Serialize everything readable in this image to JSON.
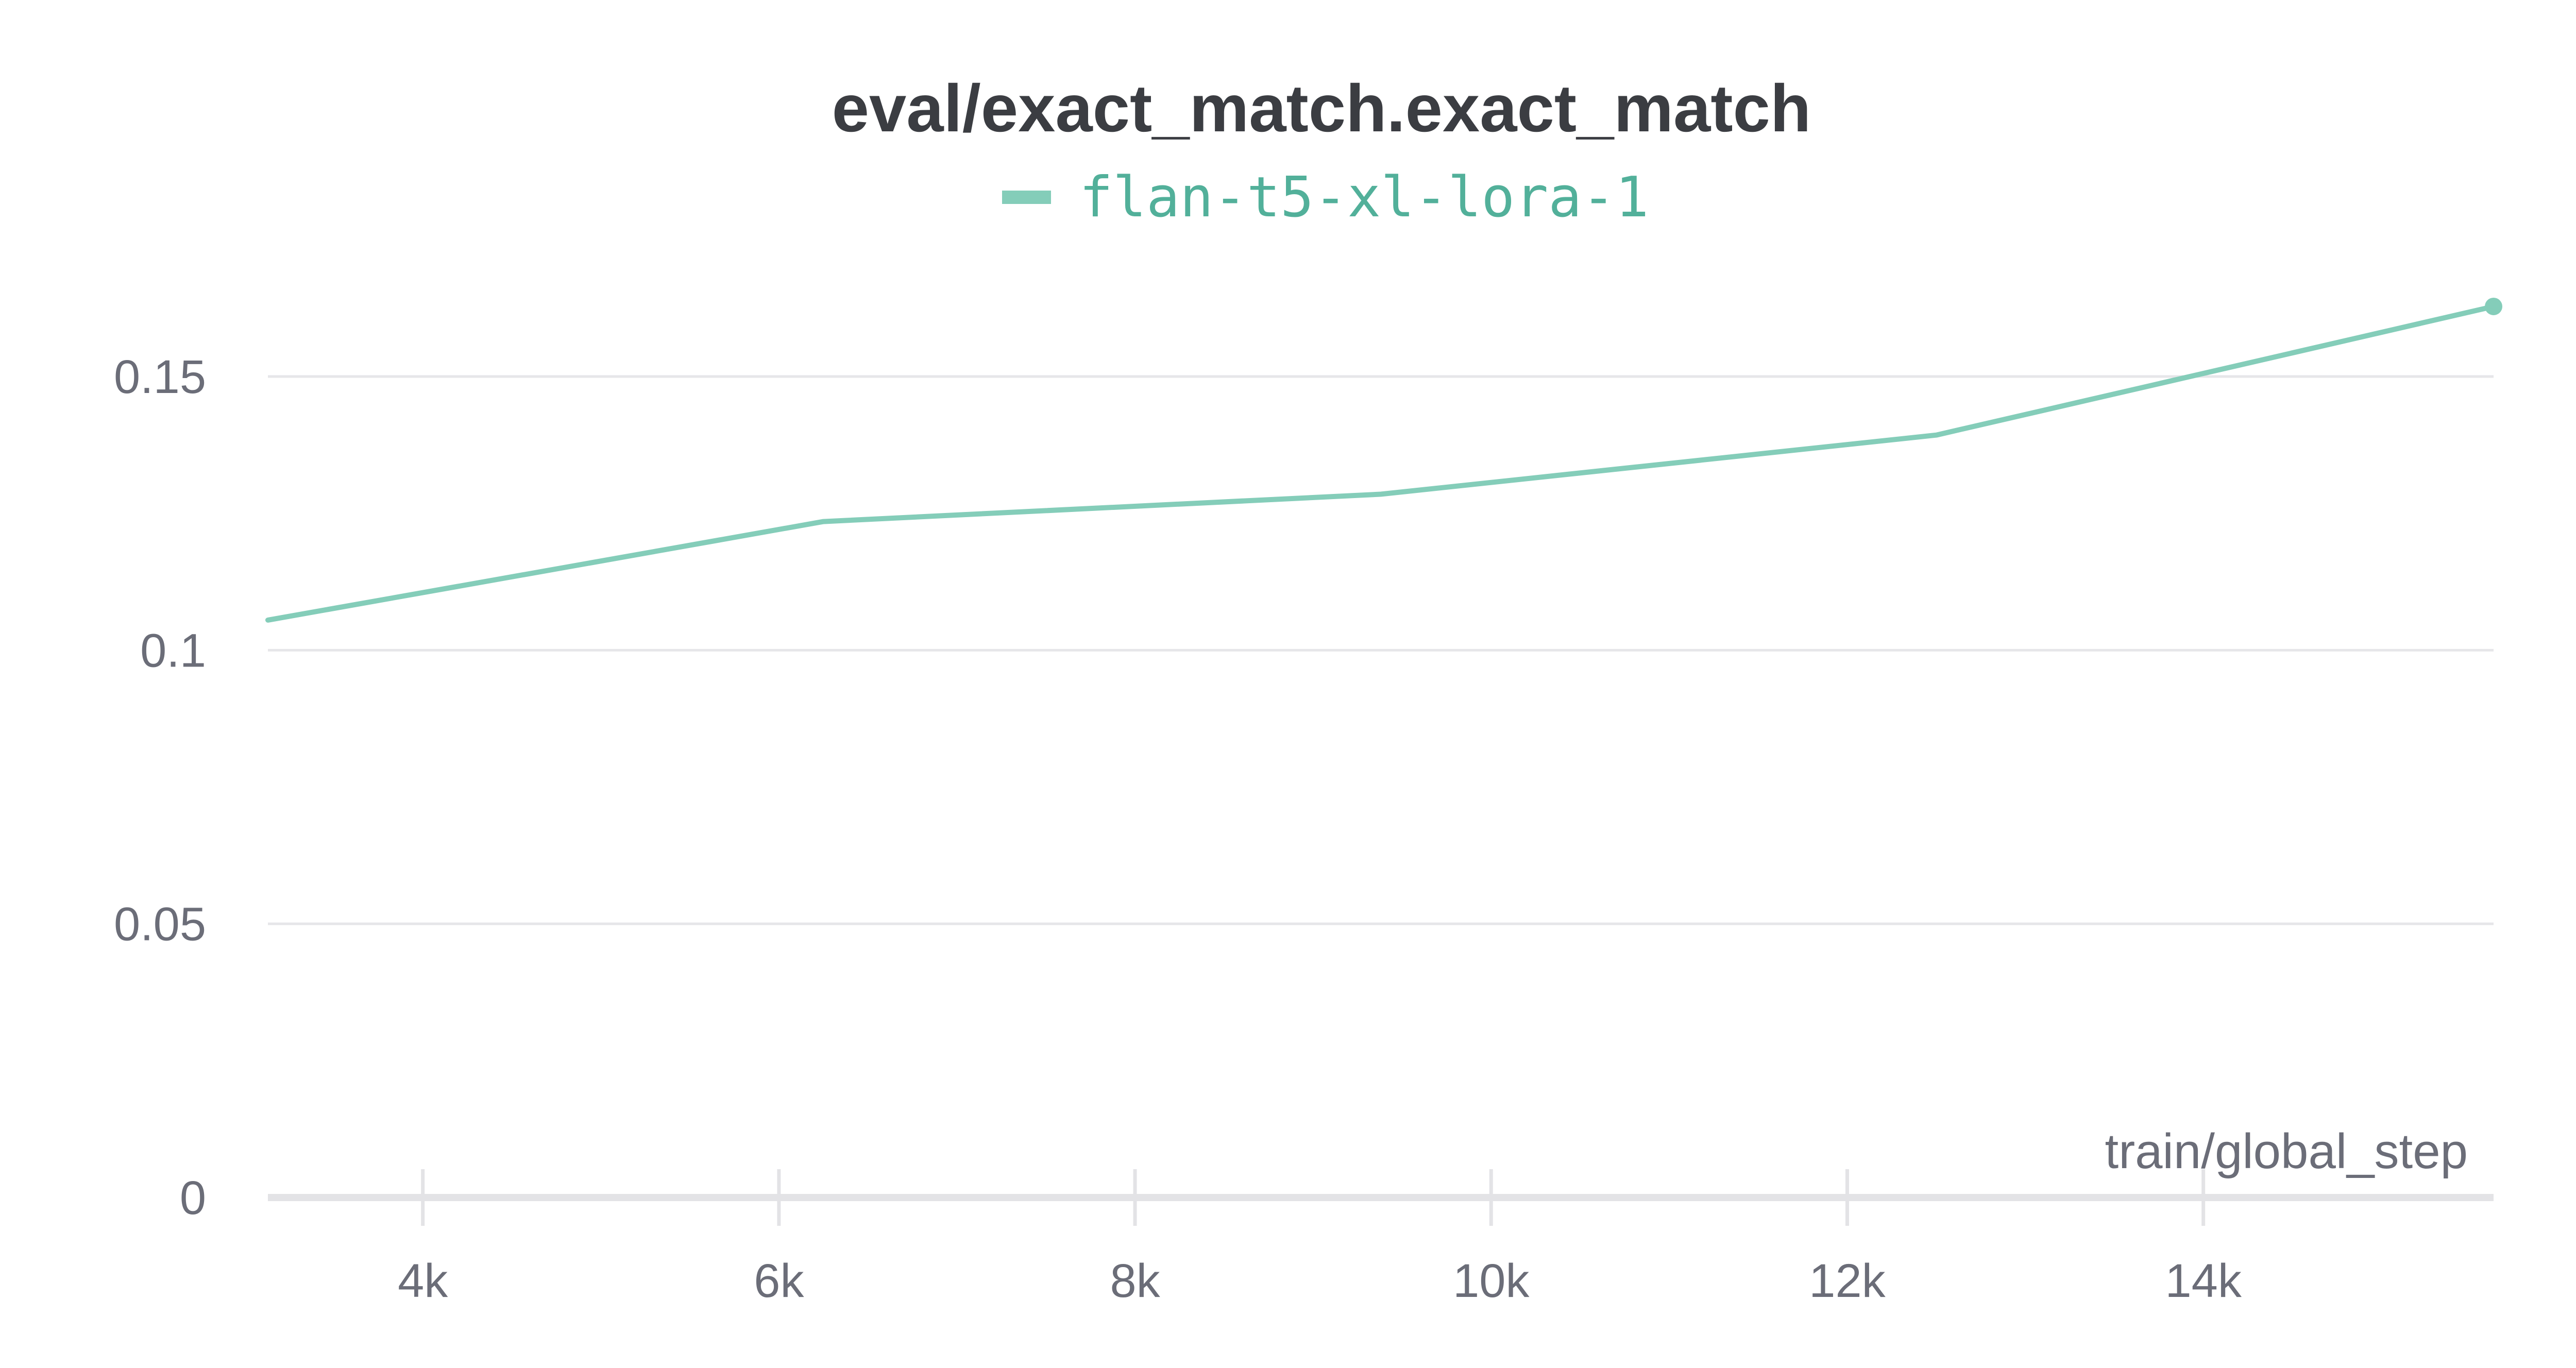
{
  "chart_data": {
    "type": "line",
    "title": "eval/exact_match.exact_match",
    "xlabel": "train/global_step",
    "ylabel": "",
    "xlim": [
      3130,
      15630
    ],
    "ylim": [
      0,
      0.1755
    ],
    "x_ticks": [
      {
        "value": 4000,
        "label": "4k"
      },
      {
        "value": 6000,
        "label": "6k"
      },
      {
        "value": 8000,
        "label": "8k"
      },
      {
        "value": 10000,
        "label": "10k"
      },
      {
        "value": 12000,
        "label": "12k"
      },
      {
        "value": 14000,
        "label": "14k"
      }
    ],
    "y_ticks": [
      {
        "value": 0,
        "label": "0"
      },
      {
        "value": 0.05,
        "label": "0.05"
      },
      {
        "value": 0.1,
        "label": "0.1"
      },
      {
        "value": 0.15,
        "label": "0.15"
      }
    ],
    "grid": true,
    "legend_position": "top-center",
    "series": [
      {
        "name": "flan-t5-xl-lora-1",
        "color": "#84cdb9",
        "x": [
          3130,
          6250,
          9380,
          12500,
          15630
        ],
        "y": [
          0.1055,
          0.1235,
          0.1285,
          0.1393,
          0.1628
        ]
      }
    ]
  }
}
